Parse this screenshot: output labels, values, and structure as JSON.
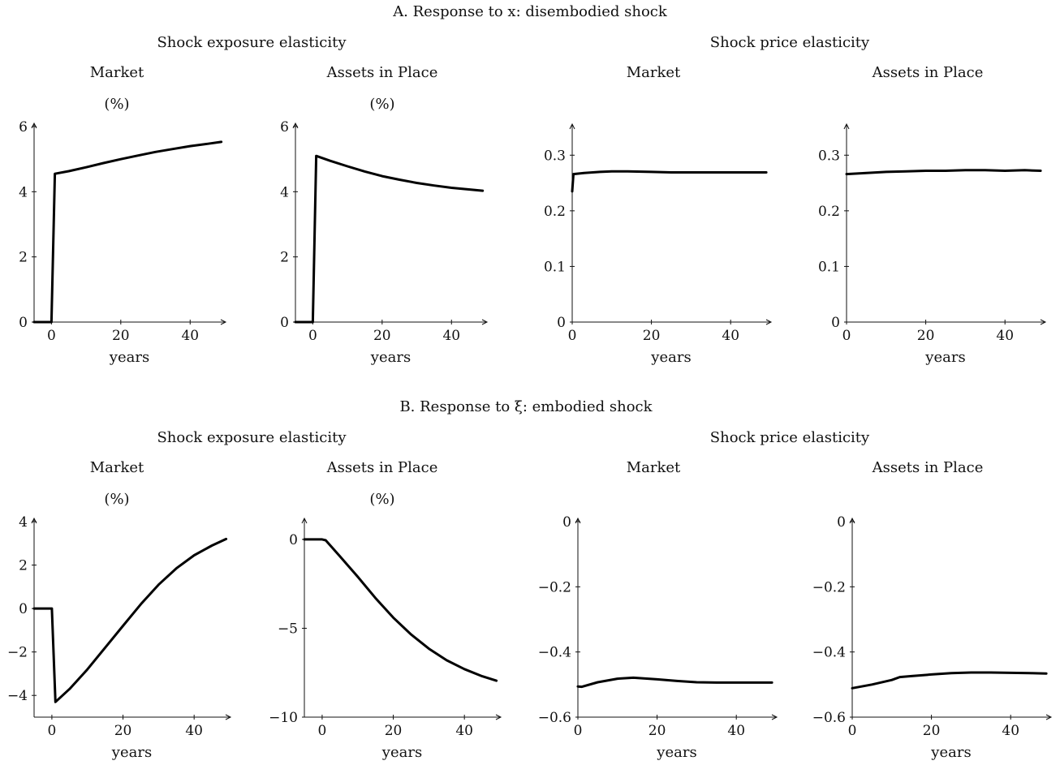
{
  "panels": {
    "A": {
      "title": "A. Response to x: disembodied shock",
      "exposure_heading": "Shock exposure elasticity",
      "price_heading": "Shock price elasticity"
    },
    "B": {
      "title": "B. Response to ξ: embodied shock",
      "exposure_heading": "Shock exposure elasticity",
      "price_heading": "Shock price elasticity"
    }
  },
  "chart_data": [
    {
      "type": "line",
      "panel": "A",
      "group": "exposure",
      "title": "Market",
      "subtitle": "(%)",
      "xlabel": "years",
      "ylabel": "",
      "xlim": [
        -5,
        50
      ],
      "ylim": [
        0,
        6
      ],
      "xticks": [
        0,
        20,
        40
      ],
      "xtick_labels": [
        "0",
        "20",
        "40"
      ],
      "yticks": [
        0,
        2,
        4,
        6
      ],
      "ytick_labels": [
        "0",
        "2",
        "4",
        "6"
      ],
      "grid": false,
      "series": [
        {
          "x": [
            -5,
            0,
            1,
            5,
            10,
            15,
            20,
            25,
            30,
            35,
            40,
            45,
            49
          ],
          "y": [
            0,
            0,
            4.55,
            4.63,
            4.75,
            4.88,
            5.0,
            5.11,
            5.22,
            5.31,
            5.4,
            5.47,
            5.53
          ]
        }
      ]
    },
    {
      "type": "line",
      "panel": "A",
      "group": "exposure",
      "title": "Assets in Place",
      "subtitle": "(%)",
      "xlabel": "years",
      "ylabel": "",
      "xlim": [
        -5,
        50
      ],
      "ylim": [
        0,
        6
      ],
      "xticks": [
        0,
        20,
        40
      ],
      "xtick_labels": [
        "0",
        "20",
        "40"
      ],
      "yticks": [
        0,
        2,
        4,
        6
      ],
      "ytick_labels": [
        "0",
        "2",
        "4",
        "6"
      ],
      "grid": false,
      "series": [
        {
          "x": [
            -5,
            0,
            1,
            5,
            10,
            15,
            20,
            25,
            30,
            35,
            40,
            45,
            49
          ],
          "y": [
            0,
            0,
            5.1,
            4.95,
            4.78,
            4.62,
            4.48,
            4.37,
            4.27,
            4.19,
            4.12,
            4.07,
            4.03
          ]
        }
      ]
    },
    {
      "type": "line",
      "panel": "A",
      "group": "price",
      "title": "Market",
      "subtitle": "",
      "xlabel": "years",
      "ylabel": "",
      "xlim": [
        0,
        50
      ],
      "ylim": [
        0,
        0.35
      ],
      "xticks": [
        0,
        20,
        40
      ],
      "xtick_labels": [
        "0",
        "20",
        "40"
      ],
      "yticks": [
        0,
        0.1,
        0.2,
        0.3
      ],
      "ytick_labels": [
        "0",
        "0.1",
        "0.2",
        "0.3"
      ],
      "grid": false,
      "series": [
        {
          "x": [
            0,
            0.3,
            3,
            7,
            10,
            14,
            20,
            25,
            30,
            35,
            40,
            45,
            49
          ],
          "y": [
            0.235,
            0.266,
            0.268,
            0.27,
            0.271,
            0.271,
            0.27,
            0.269,
            0.269,
            0.269,
            0.269,
            0.269,
            0.269
          ]
        }
      ]
    },
    {
      "type": "line",
      "panel": "A",
      "group": "price",
      "title": "Assets in Place",
      "subtitle": "",
      "xlabel": "years",
      "ylabel": "",
      "xlim": [
        0,
        50
      ],
      "ylim": [
        0,
        0.35
      ],
      "xticks": [
        0,
        20,
        40
      ],
      "xtick_labels": [
        "0",
        "20",
        "40"
      ],
      "yticks": [
        0,
        0.1,
        0.2,
        0.3
      ],
      "ytick_labels": [
        "0",
        "0.1",
        "0.2",
        "0.3"
      ],
      "grid": false,
      "series": [
        {
          "x": [
            0,
            5,
            10,
            15,
            20,
            25,
            30,
            35,
            40,
            45,
            49
          ],
          "y": [
            0.266,
            0.268,
            0.27,
            0.271,
            0.272,
            0.272,
            0.273,
            0.273,
            0.272,
            0.273,
            0.272
          ]
        }
      ]
    },
    {
      "type": "line",
      "panel": "B",
      "group": "exposure",
      "title": "Market",
      "subtitle": "(%)",
      "xlabel": "years",
      "ylabel": "",
      "xlim": [
        -5,
        50
      ],
      "ylim": [
        -5,
        4
      ],
      "xticks": [
        0,
        20,
        40
      ],
      "xtick_labels": [
        "0",
        "20",
        "40"
      ],
      "yticks": [
        -4,
        -2,
        0,
        2,
        4
      ],
      "ytick_labels": [
        "−4",
        "−2",
        "0",
        "2",
        "4"
      ],
      "grid": false,
      "series": [
        {
          "x": [
            -5,
            0,
            1,
            5,
            10,
            15,
            20,
            25,
            30,
            35,
            40,
            45,
            49
          ],
          "y": [
            0,
            0,
            -4.3,
            -3.7,
            -2.8,
            -1.8,
            -0.8,
            0.2,
            1.1,
            1.85,
            2.45,
            2.9,
            3.2
          ]
        }
      ]
    },
    {
      "type": "line",
      "panel": "B",
      "group": "exposure",
      "title": "Assets in Place",
      "subtitle": "(%)",
      "xlabel": "years",
      "ylabel": "",
      "xlim": [
        -5,
        50
      ],
      "ylim": [
        -10,
        1
      ],
      "xticks": [
        0,
        20,
        40
      ],
      "xtick_labels": [
        "0",
        "20",
        "40"
      ],
      "yticks": [
        -10,
        -5,
        0
      ],
      "ytick_labels": [
        "−10",
        "−5",
        "0"
      ],
      "grid": false,
      "series": [
        {
          "x": [
            -5,
            0,
            1,
            5,
            10,
            15,
            20,
            25,
            30,
            35,
            40,
            45,
            49
          ],
          "y": [
            0,
            0,
            -0.05,
            -0.95,
            -2.1,
            -3.3,
            -4.4,
            -5.35,
            -6.15,
            -6.8,
            -7.3,
            -7.7,
            -7.95
          ]
        }
      ]
    },
    {
      "type": "line",
      "panel": "B",
      "group": "price",
      "title": "Market",
      "subtitle": "",
      "xlabel": "years",
      "ylabel": "",
      "xlim": [
        0,
        50
      ],
      "ylim": [
        -0.6,
        0
      ],
      "xticks": [
        0,
        20,
        40
      ],
      "xtick_labels": [
        "0",
        "20",
        "40"
      ],
      "yticks": [
        -0.6,
        -0.4,
        -0.2,
        0
      ],
      "ytick_labels": [
        "−0.6",
        "−0.4",
        "−0.2",
        "0"
      ],
      "grid": false,
      "series": [
        {
          "x": [
            0,
            1,
            5,
            10,
            14,
            20,
            25,
            30,
            35,
            40,
            45,
            49
          ],
          "y": [
            -0.506,
            -0.507,
            -0.493,
            -0.482,
            -0.479,
            -0.484,
            -0.489,
            -0.493,
            -0.494,
            -0.494,
            -0.494,
            -0.494
          ]
        }
      ]
    },
    {
      "type": "line",
      "panel": "B",
      "group": "price",
      "title": "Assets in Place",
      "subtitle": "",
      "xlabel": "years",
      "ylabel": "",
      "xlim": [
        0,
        50
      ],
      "ylim": [
        -0.6,
        0
      ],
      "xticks": [
        0,
        20,
        40
      ],
      "xtick_labels": [
        "0",
        "20",
        "40"
      ],
      "yticks": [
        -0.6,
        -0.4,
        -0.2,
        0
      ],
      "ytick_labels": [
        "−0.6",
        "−0.4",
        "−0.2",
        "0"
      ],
      "grid": false,
      "series": [
        {
          "x": [
            0,
            5,
            10,
            12,
            15,
            20,
            25,
            30,
            35,
            40,
            45,
            49
          ],
          "y": [
            -0.511,
            -0.5,
            -0.486,
            -0.477,
            -0.474,
            -0.469,
            -0.465,
            -0.463,
            -0.463,
            -0.464,
            -0.465,
            -0.466
          ]
        }
      ]
    }
  ]
}
